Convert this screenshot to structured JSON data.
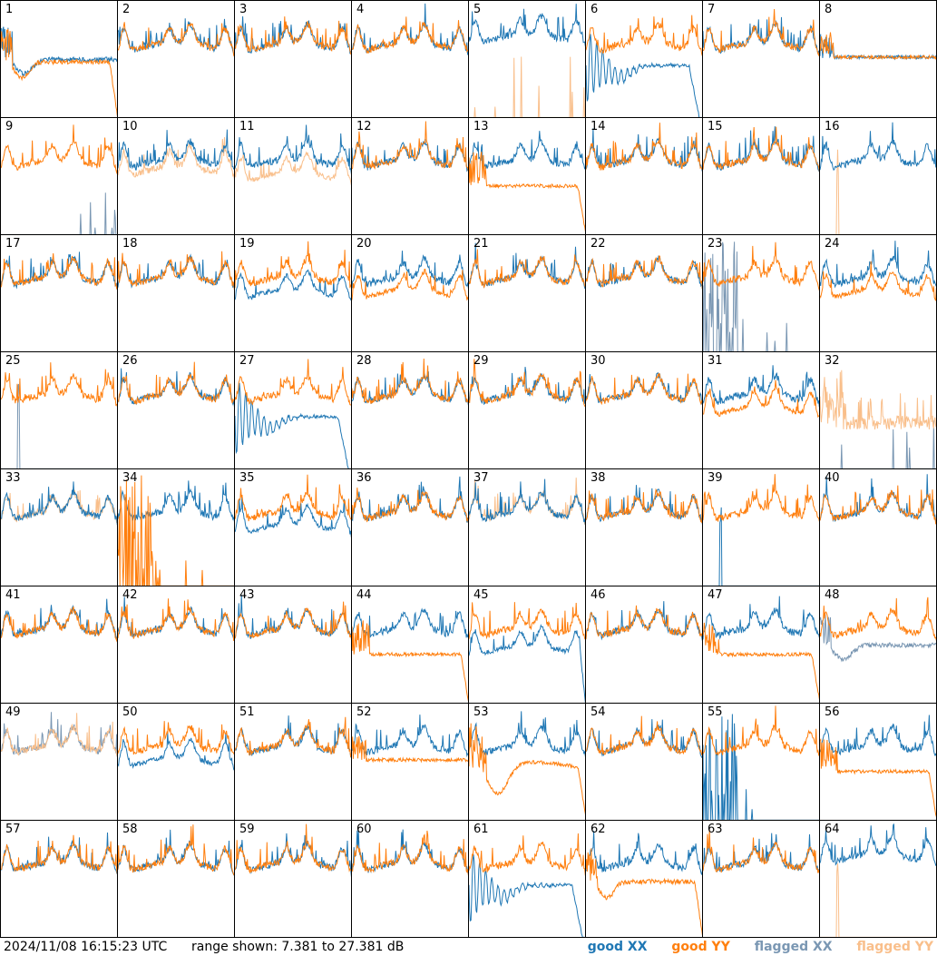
{
  "chart_data": {
    "type": "line",
    "layout": "small-multiples",
    "panels": [
      "1",
      "2",
      "3",
      "4",
      "5",
      "6",
      "7",
      "8",
      "9",
      "10",
      "11",
      "12",
      "13",
      "14",
      "15",
      "16",
      "17",
      "18",
      "19",
      "20",
      "21",
      "22",
      "23",
      "24",
      "25",
      "26",
      "27",
      "28",
      "29",
      "30",
      "31",
      "32",
      "33",
      "34",
      "35",
      "36",
      "37",
      "38",
      "39",
      "40",
      "41",
      "42",
      "43",
      "44",
      "45",
      "46",
      "47",
      "48",
      "49",
      "50",
      "51",
      "52",
      "53",
      "54",
      "55",
      "56",
      "57",
      "58",
      "59",
      "60",
      "61",
      "62",
      "63",
      "64"
    ],
    "ylim": [
      7.381,
      27.381
    ],
    "yunit": "dB",
    "grid": false,
    "legend_position": "bottom-right",
    "series": [
      {
        "name": "good XX",
        "color": "#1f77b4"
      },
      {
        "name": "good YY",
        "color": "#ff7f0e"
      },
      {
        "name": "flagged XX",
        "color": "#7a97b3"
      },
      {
        "name": "flagged YY",
        "color": "#f9bf8b"
      }
    ],
    "panel_traces": {
      "1": {
        "xx": "dip-flat",
        "yy": "dip-flat-drop"
      },
      "2": {
        "xx": "normal",
        "yy": "normal"
      },
      "3": {
        "xx": "normal",
        "yy": "normal"
      },
      "4": {
        "xx": "normal",
        "yy": "normal"
      },
      "5": {
        "xx": "normal-high",
        "yy_flagged": "spikes"
      },
      "6": {
        "xx": "oscillating-decay",
        "yy": "normal"
      },
      "7": {
        "xx": "normal",
        "yy": "normal"
      },
      "8": {
        "xx": "flat",
        "yy": "flat"
      },
      "9": {
        "yy": "normal",
        "xx_flagged": "spikes"
      },
      "10": {
        "xx": "normal",
        "yy_flagged": "normal-low"
      },
      "11": {
        "xx": "normal",
        "yy_flagged": "low"
      },
      "12": {
        "xx": "normal",
        "yy": "normal"
      },
      "13": {
        "xx": "normal",
        "yy": "flat-drop"
      },
      "14": {
        "xx": "normal",
        "yy": "normal"
      },
      "15": {
        "xx": "normal",
        "yy": "normal"
      },
      "16": {
        "xx": "normal",
        "yy_flagged": "spike"
      },
      "17": {
        "xx": "normal",
        "yy": "normal"
      },
      "18": {
        "xx": "normal",
        "yy": "normal"
      },
      "19": {
        "xx": "low",
        "yy": "normal"
      },
      "20": {
        "xx": "normal",
        "yy": "low"
      },
      "21": {
        "xx": "normal",
        "yy": "normal"
      },
      "22": {
        "xx": "normal",
        "yy": "normal"
      },
      "23": {
        "yy": "normal",
        "xx_flagged": "spikes-left"
      },
      "24": {
        "xx": "normal",
        "yy": "low"
      },
      "25": {
        "yy": "normal",
        "xx_flagged": "spike"
      },
      "26": {
        "xx": "normal",
        "yy": "normal"
      },
      "27": {
        "xx": "oscillating-decay",
        "yy": "normal"
      },
      "28": {
        "xx": "normal",
        "yy": "normal"
      },
      "29": {
        "xx": "normal",
        "yy": "normal"
      },
      "30": {
        "xx": "normal",
        "yy": "normal"
      },
      "31": {
        "xx": "normal",
        "yy": "low"
      },
      "32": {
        "yy_flagged": "noisy",
        "xx_flagged": "spikes"
      },
      "33": {
        "xx": "normal",
        "yy_flagged": "normal"
      },
      "34": {
        "xx": "normal",
        "yy": "spikes-left"
      },
      "35": {
        "xx": "low",
        "yy": "normal"
      },
      "36": {
        "xx": "normal",
        "yy": "normal"
      },
      "37": {
        "xx": "normal",
        "yy_flagged": "normal"
      },
      "38": {
        "xx": "normal",
        "yy": "normal"
      },
      "39": {
        "yy": "normal",
        "xx": "spike"
      },
      "40": {
        "xx": "normal",
        "yy": "normal"
      },
      "41": {
        "xx": "normal",
        "yy": "normal"
      },
      "42": {
        "xx": "normal",
        "yy": "normal"
      },
      "43": {
        "xx": "normal",
        "yy": "normal"
      },
      "44": {
        "xx": "normal",
        "yy": "flat-drop"
      },
      "45": {
        "xx": "low-drop",
        "yy": "normal"
      },
      "46": {
        "xx": "normal",
        "yy": "normal"
      },
      "47": {
        "xx": "normal",
        "yy": "flat-drop"
      },
      "48": {
        "yy": "normal",
        "xx_flagged": "dip-flat"
      },
      "49": {
        "xx_flagged": "normal",
        "yy_flagged": "normal"
      },
      "50": {
        "xx": "low",
        "yy": "normal"
      },
      "51": {
        "xx": "normal",
        "yy": "normal"
      },
      "52": {
        "xx": "normal",
        "yy": "flat"
      },
      "53": {
        "xx": "normal",
        "yy": "dip-drop"
      },
      "54": {
        "xx": "normal",
        "yy": "normal"
      },
      "55": {
        "yy": "normal",
        "xx": "spikes-left"
      },
      "56": {
        "xx": "normal",
        "yy": "flat-drop"
      },
      "57": {
        "xx": "normal",
        "yy": "normal"
      },
      "58": {
        "xx": "normal",
        "yy": "normal"
      },
      "59": {
        "xx": "normal",
        "yy": "normal"
      },
      "60": {
        "xx": "normal",
        "yy": "normal"
      },
      "61": {
        "xx": "oscillating-decay",
        "yy": "normal"
      },
      "62": {
        "xx": "normal",
        "yy": "dip-flat-drop"
      },
      "63": {
        "xx": "normal",
        "yy": "normal"
      },
      "64": {
        "xx": "normal-high",
        "yy_flagged": "spike"
      }
    }
  },
  "footer": {
    "timestamp": "2024/11/08 16:15:23 UTC",
    "range_text": "range shown: 7.381 to 27.381 dB"
  },
  "legend": {
    "good_xx": "good XX",
    "good_yy": "good YY",
    "flagged_xx": "flagged XX",
    "flagged_yy": "flagged YY"
  }
}
